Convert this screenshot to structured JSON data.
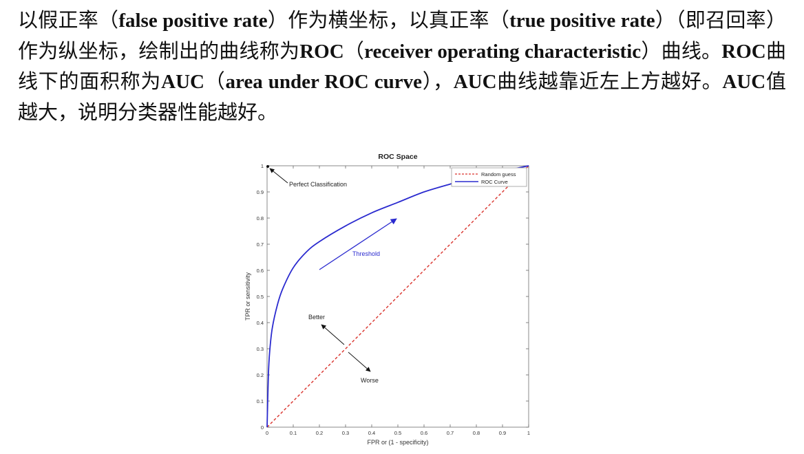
{
  "paragraph": [
    {
      "t": "以假正率（",
      "b": false
    },
    {
      "t": "false positive rate",
      "b": true
    },
    {
      "t": "）作为横坐标，以真正率（",
      "b": false
    },
    {
      "t": "true positive rate",
      "b": true
    },
    {
      "t": "）（即召回率）作为纵坐标，绘制出的曲线称为",
      "b": false
    },
    {
      "t": "ROC",
      "b": true
    },
    {
      "t": "（",
      "b": false
    },
    {
      "t": "receiver operating characteristic",
      "b": true
    },
    {
      "t": "）曲线。",
      "b": false
    },
    {
      "t": "ROC",
      "b": true
    },
    {
      "t": "曲线下的面积称为",
      "b": false
    },
    {
      "t": "AUC",
      "b": true
    },
    {
      "t": "（",
      "b": false
    },
    {
      "t": "area under ROC curve",
      "b": true
    },
    {
      "t": "），",
      "b": false
    },
    {
      "t": "AUC",
      "b": true
    },
    {
      "t": "曲线越靠近左上方越好。",
      "b": false
    },
    {
      "t": "AUC",
      "b": true
    },
    {
      "t": "值越大，说明分类器性能越好。",
      "b": false
    }
  ],
  "chart_data": {
    "type": "line",
    "title": "ROC Space",
    "xlabel": "FPR or (1 - specificity)",
    "ylabel": "TPR or sensitivity",
    "xlim": [
      0,
      1
    ],
    "ylim": [
      0,
      1
    ],
    "x_ticks": [
      "0",
      "0.1",
      "0.2",
      "0.3",
      "0.4",
      "0.5",
      "0.6",
      "0.7",
      "0.8",
      "0.9",
      "1"
    ],
    "y_ticks": [
      "0",
      "0.1",
      "0.2",
      "0.3",
      "0.4",
      "0.5",
      "0.6",
      "0.7",
      "0.8",
      "0.9",
      "1"
    ],
    "legend_position": "top-right",
    "series": [
      {
        "name": "Random guess",
        "color": "#d9302a",
        "style": "dashed",
        "x": [
          0,
          1
        ],
        "y": [
          0,
          1
        ]
      },
      {
        "name": "ROC Curve",
        "color": "#2a2acf",
        "style": "solid",
        "x": [
          0,
          0.005,
          0.01,
          0.02,
          0.04,
          0.06,
          0.1,
          0.15,
          0.2,
          0.3,
          0.4,
          0.5,
          0.6,
          0.7,
          0.8,
          0.9,
          1.0
        ],
        "y": [
          0,
          0.2,
          0.29,
          0.38,
          0.47,
          0.53,
          0.61,
          0.67,
          0.71,
          0.77,
          0.82,
          0.86,
          0.9,
          0.93,
          0.96,
          0.98,
          1.0
        ]
      }
    ],
    "annotations": {
      "perfect": {
        "text": "Perfect Classification",
        "x": 0,
        "y": 1
      },
      "threshold": "Threshold",
      "better": "Better",
      "worse": "Worse"
    }
  }
}
